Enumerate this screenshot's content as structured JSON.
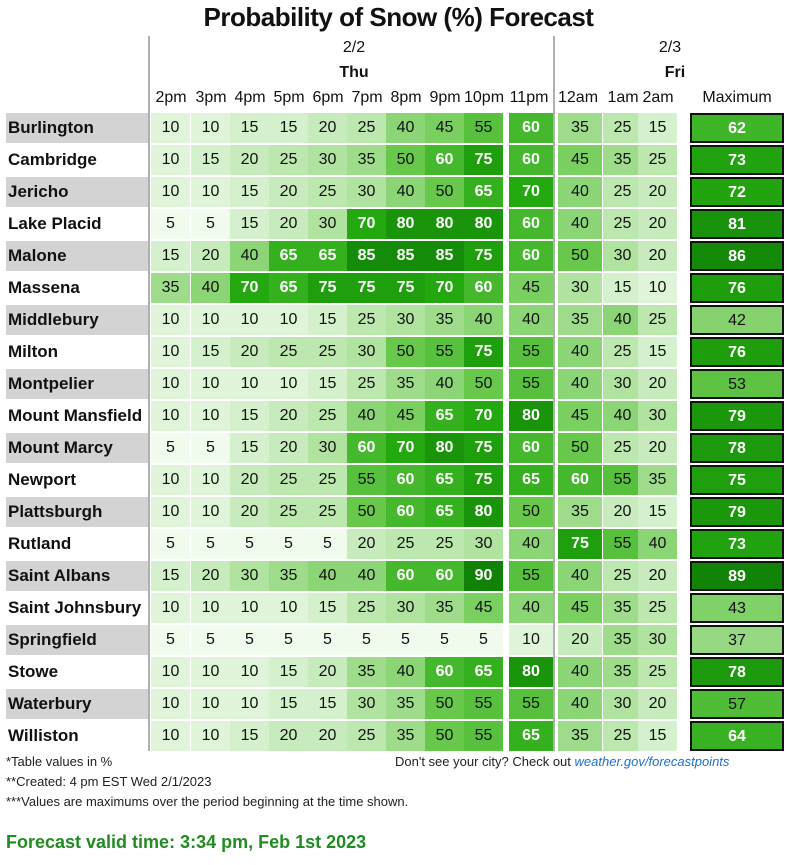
{
  "title": "Probability of Snow (%) Forecast",
  "dates": [
    {
      "date": "2/2",
      "day": "Thu"
    },
    {
      "date": "2/3",
      "day": "Fri"
    }
  ],
  "max_header": "Maximum",
  "chart_data": {
    "type": "table",
    "title": "Probability of Snow (%) Forecast",
    "columns": [
      "2pm",
      "3pm",
      "4pm",
      "5pm",
      "6pm",
      "7pm",
      "8pm",
      "9pm",
      "10pm",
      "11pm",
      "12am",
      "1am",
      "2am"
    ],
    "max_column": "Maximum",
    "rows": [
      {
        "city": "Burlington",
        "values": [
          10,
          10,
          15,
          15,
          20,
          25,
          40,
          45,
          55,
          60,
          35,
          25,
          15
        ],
        "max": 62
      },
      {
        "city": "Cambridge",
        "values": [
          10,
          15,
          20,
          25,
          30,
          35,
          50,
          60,
          75,
          60,
          45,
          35,
          25
        ],
        "max": 73
      },
      {
        "city": "Jericho",
        "values": [
          10,
          10,
          15,
          20,
          25,
          30,
          40,
          50,
          65,
          70,
          40,
          25,
          20
        ],
        "max": 72
      },
      {
        "city": "Lake Placid",
        "values": [
          5,
          5,
          15,
          20,
          30,
          70,
          80,
          80,
          80,
          60,
          40,
          25,
          20
        ],
        "max": 81
      },
      {
        "city": "Malone",
        "values": [
          15,
          20,
          40,
          65,
          65,
          85,
          85,
          85,
          75,
          60,
          50,
          30,
          20
        ],
        "max": 86
      },
      {
        "city": "Massena",
        "values": [
          35,
          40,
          70,
          65,
          75,
          75,
          75,
          70,
          60,
          45,
          30,
          15,
          10
        ],
        "max": 76
      },
      {
        "city": "Middlebury",
        "values": [
          10,
          10,
          10,
          10,
          15,
          25,
          30,
          35,
          40,
          40,
          35,
          40,
          25
        ],
        "max": 42
      },
      {
        "city": "Milton",
        "values": [
          10,
          15,
          20,
          25,
          25,
          30,
          50,
          55,
          75,
          55,
          40,
          25,
          15
        ],
        "max": 76
      },
      {
        "city": "Montpelier",
        "values": [
          10,
          10,
          10,
          10,
          15,
          25,
          35,
          40,
          50,
          55,
          40,
          30,
          20
        ],
        "max": 53
      },
      {
        "city": "Mount Mansfield",
        "values": [
          10,
          10,
          15,
          20,
          25,
          40,
          45,
          65,
          70,
          80,
          45,
          40,
          30
        ],
        "max": 79
      },
      {
        "city": "Mount Marcy",
        "values": [
          5,
          5,
          15,
          20,
          30,
          60,
          70,
          80,
          75,
          60,
          50,
          25,
          20
        ],
        "max": 78
      },
      {
        "city": "Newport",
        "values": [
          10,
          10,
          20,
          25,
          25,
          55,
          60,
          65,
          75,
          65,
          60,
          55,
          35
        ],
        "max": 75
      },
      {
        "city": "Plattsburgh",
        "values": [
          10,
          10,
          20,
          25,
          25,
          50,
          60,
          65,
          80,
          50,
          35,
          20,
          15
        ],
        "max": 79
      },
      {
        "city": "Rutland",
        "values": [
          5,
          5,
          5,
          5,
          5,
          20,
          25,
          25,
          30,
          40,
          75,
          55,
          40
        ],
        "max": 73
      },
      {
        "city": "Saint Albans",
        "values": [
          15,
          20,
          30,
          35,
          40,
          40,
          60,
          60,
          90,
          55,
          40,
          25,
          20
        ],
        "max": 89
      },
      {
        "city": "Saint Johnsbury",
        "values": [
          10,
          10,
          10,
          10,
          15,
          25,
          30,
          35,
          45,
          40,
          45,
          35,
          25
        ],
        "max": 43
      },
      {
        "city": "Springfield",
        "values": [
          5,
          5,
          5,
          5,
          5,
          5,
          5,
          5,
          5,
          10,
          20,
          35,
          30
        ],
        "max": 37
      },
      {
        "city": "Stowe",
        "values": [
          10,
          10,
          10,
          15,
          20,
          35,
          40,
          60,
          65,
          80,
          40,
          35,
          25
        ],
        "max": 78
      },
      {
        "city": "Waterbury",
        "values": [
          10,
          10,
          10,
          15,
          15,
          30,
          35,
          50,
          55,
          55,
          40,
          30,
          20
        ],
        "max": 57
      },
      {
        "city": "Williston",
        "values": [
          10,
          10,
          15,
          20,
          20,
          25,
          35,
          50,
          55,
          65,
          35,
          25,
          15
        ],
        "max": 64
      }
    ]
  },
  "footnotes": {
    "units": "*Table values in %",
    "created": "**Created: 4 pm EST Wed 2/1/2023",
    "maxnote": "***Values are maximums over the period beginning at the time shown.",
    "city_prompt": "Don't see your city? Check out",
    "city_link": "weather.gov/forecastpoints"
  },
  "valid_time": "Forecast valid time: 3:34 pm, Feb 1st 2023"
}
